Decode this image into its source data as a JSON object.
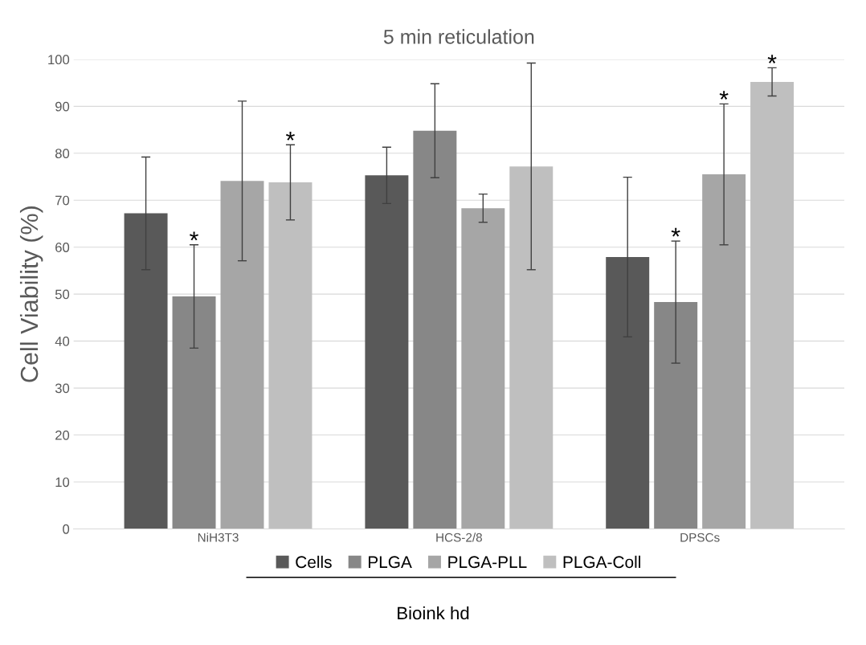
{
  "chart_data": {
    "type": "bar",
    "title": "5 min reticulation",
    "xlabel": "Bioink hd",
    "ylabel": "Cell Viability (%)",
    "categories": [
      "NiH3T3",
      "HCS-2/8",
      "DPSCs"
    ],
    "series": [
      {
        "name": "Cells",
        "color": "#595959",
        "values": [
          67.2,
          75.3,
          57.9
        ],
        "errors": [
          12,
          6,
          17
        ]
      },
      {
        "name": "PLGA",
        "color": "#878787",
        "values": [
          49.5,
          84.8,
          48.3
        ],
        "errors": [
          11,
          10,
          13
        ],
        "value_labels": [
          "*",
          null,
          "*"
        ]
      },
      {
        "name": "PLGA-PLL",
        "color": "#a6a6a6",
        "values": [
          74.1,
          68.3,
          75.5
        ],
        "errors": [
          17,
          3,
          15
        ],
        "value_labels": [
          null,
          null,
          "*"
        ]
      },
      {
        "name": "PLGA-Coll",
        "color": "#bfbfbf",
        "values": [
          73.8,
          77.2,
          95.2
        ],
        "errors": [
          8,
          22,
          3
        ],
        "value_labels": [
          "*",
          null,
          "*"
        ]
      }
    ],
    "ylim": [
      0,
      100
    ],
    "yticks": [
      0,
      10,
      20,
      30,
      40,
      50,
      60,
      70,
      80,
      90,
      100
    ],
    "grid": "y",
    "legend": "bottom"
  }
}
